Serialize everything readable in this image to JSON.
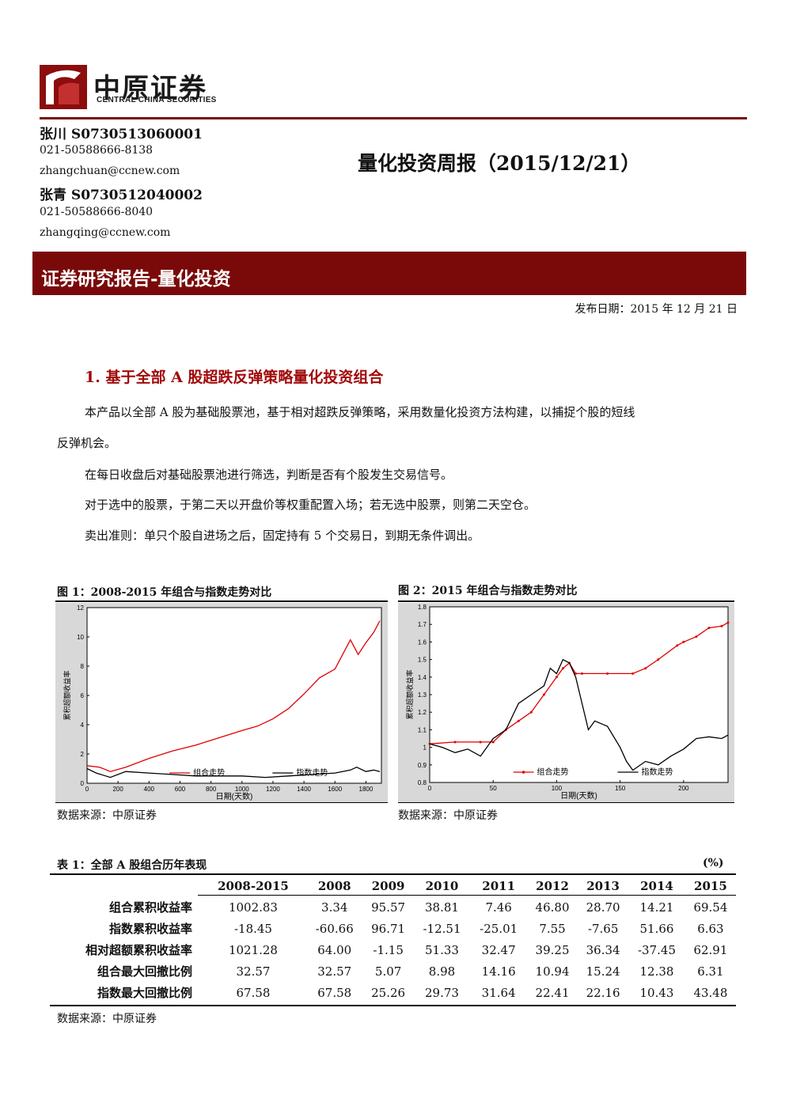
{
  "header": {
    "logo_cn": "中原证券",
    "logo_en": "CENTRAL CHINA SECURITIES",
    "report_title": "量化投资周报（2015/12/21）",
    "authors": [
      {
        "name": "张川 S0730513060001",
        "phone": "021-50588666-8138",
        "email": "zhangchuan@ccnew.com"
      },
      {
        "name": "张青 S0730512040002",
        "phone": "021-50588666-8040",
        "email": "zhangqing@ccnew.com"
      }
    ],
    "banner": "证券研究报告-量化投资",
    "pub_date": "发布日期：2015 年 12 月 21 日",
    "colors": {
      "brand": "#7a0a0a",
      "section_title": "#a10a0a"
    }
  },
  "section": {
    "title": "1. 基于全部 A 股超跌反弹策略量化投资组合",
    "para1_a": "本产品以全部 A 股为基础股票池，基于相对超跌反弹策略，采用数量化投资方法构建，以捕捉个股的短线",
    "para1_b": "反弹机会。",
    "para2": "在每日收盘后对基础股票池进行筛选，判断是否有个股发生交易信号。",
    "para3": "对于选中的股票，于第二天以开盘价等权重配置入场；若无选中股票，则第二天空仓。",
    "para4": "卖出准则：单只个股自进场之后，固定持有 5 个交易日，到期无条件调出。"
  },
  "figures": {
    "fig1_title": "图 1：2008-2015 年组合与指数走势对比",
    "fig2_title": "图 2：2015 年组合与指数走势对比",
    "source": "数据来源：中原证券"
  },
  "chart_data": [
    {
      "type": "line",
      "xlabel": "日期(天数)",
      "ylabel": "累积超额收益率",
      "xlim": [
        0,
        1900
      ],
      "ylim": [
        0,
        12
      ],
      "xticks": [
        0,
        200,
        400,
        600,
        800,
        1000,
        1200,
        1400,
        1600,
        1800
      ],
      "yticks": [
        0,
        2,
        4,
        6,
        8,
        10,
        12
      ],
      "legend_position": "bottom",
      "series": [
        {
          "name": "组合走势",
          "color": "#e00000",
          "x": [
            0,
            80,
            150,
            250,
            400,
            550,
            700,
            850,
            1000,
            1100,
            1200,
            1300,
            1400,
            1500,
            1600,
            1700,
            1750,
            1800,
            1850,
            1890
          ],
          "y": [
            1.2,
            1.1,
            0.8,
            1.1,
            1.7,
            2.2,
            2.6,
            3.1,
            3.6,
            3.9,
            4.4,
            5.1,
            6.1,
            7.2,
            7.8,
            9.8,
            8.8,
            9.6,
            10.3,
            11.1
          ]
        },
        {
          "name": "指数走势",
          "color": "#000000",
          "x": [
            0,
            60,
            150,
            250,
            400,
            550,
            700,
            850,
            1000,
            1150,
            1300,
            1450,
            1600,
            1700,
            1740,
            1800,
            1850,
            1890
          ],
          "y": [
            1.0,
            0.7,
            0.4,
            0.8,
            0.7,
            0.6,
            0.5,
            0.5,
            0.5,
            0.4,
            0.5,
            0.6,
            0.7,
            0.9,
            1.1,
            0.8,
            0.9,
            0.8
          ]
        }
      ]
    },
    {
      "type": "line",
      "xlabel": "日期(天数)",
      "ylabel": "累积超额收益率",
      "xlim": [
        0,
        235
      ],
      "ylim": [
        0.8,
        1.8
      ],
      "xticks": [
        0,
        50,
        100,
        150,
        200
      ],
      "yticks": [
        0.8,
        0.9,
        1.0,
        1.1,
        1.2,
        1.3,
        1.4,
        1.5,
        1.6,
        1.7,
        1.8
      ],
      "legend_position": "bottom",
      "series": [
        {
          "name": "组合走势",
          "color": "#e00000",
          "x": [
            0,
            20,
            40,
            50,
            60,
            70,
            80,
            90,
            100,
            105,
            110,
            115,
            120,
            140,
            160,
            170,
            180,
            195,
            200,
            210,
            220,
            230,
            235
          ],
          "y": [
            1.02,
            1.03,
            1.03,
            1.03,
            1.1,
            1.15,
            1.2,
            1.3,
            1.4,
            1.45,
            1.48,
            1.42,
            1.42,
            1.42,
            1.42,
            1.45,
            1.5,
            1.58,
            1.6,
            1.63,
            1.68,
            1.69,
            1.71
          ]
        },
        {
          "name": "指数走势",
          "color": "#000000",
          "x": [
            0,
            10,
            20,
            30,
            40,
            50,
            60,
            70,
            80,
            90,
            95,
            100,
            105,
            110,
            115,
            120,
            125,
            130,
            140,
            150,
            155,
            160,
            170,
            180,
            190,
            200,
            210,
            220,
            230,
            235
          ],
          "y": [
            1.02,
            1.0,
            0.97,
            0.99,
            0.95,
            1.05,
            1.1,
            1.25,
            1.3,
            1.35,
            1.45,
            1.42,
            1.5,
            1.48,
            1.4,
            1.25,
            1.1,
            1.15,
            1.12,
            1.0,
            0.92,
            0.87,
            0.92,
            0.9,
            0.95,
            0.99,
            1.05,
            1.06,
            1.05,
            1.07
          ]
        }
      ]
    }
  ],
  "table": {
    "title": "表 1：全部 A 股组合历年表现",
    "unit": "(%)",
    "columns": [
      "",
      "2008-2015",
      "2008",
      "2009",
      "2010",
      "2011",
      "2012",
      "2013",
      "2014",
      "2015"
    ],
    "rows": [
      [
        "组合累积收益率",
        "1002.83",
        "3.34",
        "95.57",
        "38.81",
        "7.46",
        "46.80",
        "28.70",
        "14.21",
        "69.54"
      ],
      [
        "指数累积收益率",
        "-18.45",
        "-60.66",
        "96.71",
        "-12.51",
        "-25.01",
        "7.55",
        "-7.65",
        "51.66",
        "6.63"
      ],
      [
        "相对超额累积收益率",
        "1021.28",
        "64.00",
        "-1.15",
        "51.33",
        "32.47",
        "39.25",
        "36.34",
        "-37.45",
        "62.91"
      ],
      [
        "组合最大回撤比例",
        "32.57",
        "32.57",
        "5.07",
        "8.98",
        "14.16",
        "10.94",
        "15.24",
        "12.38",
        "6.31"
      ],
      [
        "指数最大回撤比例",
        "67.58",
        "67.58",
        "25.26",
        "29.73",
        "31.64",
        "22.41",
        "22.16",
        "10.43",
        "43.48"
      ]
    ],
    "source": "数据来源：中原证券"
  }
}
